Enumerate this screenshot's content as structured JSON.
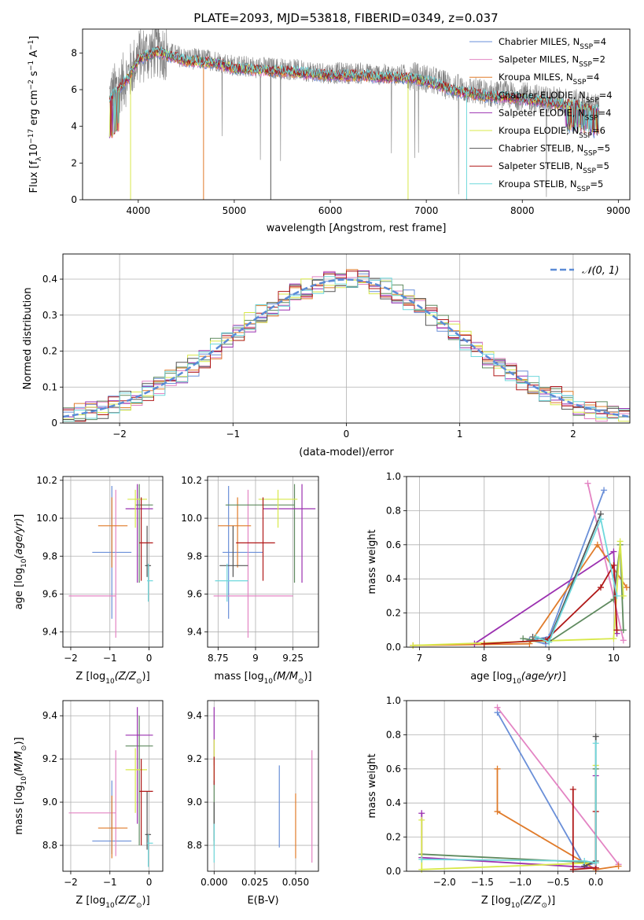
{
  "figure": {
    "title": "PLATE=2093, MJD=53818, FIBERID=0349, z=0.037"
  },
  "series_styles": [
    {
      "name": "Chabrier MILES",
      "nssp": "4",
      "color": "#6a8fd8"
    },
    {
      "name": "Salpeter MILES",
      "nssp": "2",
      "color": "#e384c3"
    },
    {
      "name": "Kroupa MILES",
      "nssp": "4",
      "color": "#e07b2a"
    },
    {
      "name": "Chabrier ELODIE",
      "nssp": "4",
      "color": "#5f8a5f"
    },
    {
      "name": "Salpeter ELODIE",
      "nssp": "4",
      "color": "#9b30b0"
    },
    {
      "name": "Kroupa ELODIE",
      "nssp": "6",
      "color": "#d8e84a"
    },
    {
      "name": "Chabrier STELIB",
      "nssp": "5",
      "color": "#555555"
    },
    {
      "name": "Salpeter STELIB",
      "nssp": "5",
      "color": "#b01818"
    },
    {
      "name": "Kroupa STELIB",
      "nssp": "5",
      "color": "#6fd8dc"
    }
  ],
  "chart_data": [
    {
      "id": "spectrum",
      "type": "line",
      "xlabel": "wavelength [Angstrom, rest frame]",
      "ylabel_main": "Flux [f",
      "ylabel_sub": "λ",
      "ylabel_rest": "10",
      "ylabel_exp1": "−17",
      "ylabel_mid": " erg cm",
      "ylabel_exp2": "−2",
      "ylabel_s": " s",
      "ylabel_exp3": "−1",
      "ylabel_a": " A",
      "ylabel_exp4": "−1",
      "ylabel_end": "]",
      "xlim": [
        3420,
        9120
      ],
      "ylim": [
        0,
        9.3
      ],
      "xticks": [
        4000,
        5000,
        6000,
        7000,
        8000,
        9000
      ],
      "yticks": [
        0,
        2,
        4,
        6,
        8
      ],
      "legend_position": "top-right",
      "legend_nssp_label": "N",
      "legend_nssp_sub": "SSP",
      "data_color": "#808080",
      "envelope": {
        "x": [
          3700,
          3900,
          4000,
          4200,
          4500,
          4800,
          5000,
          5300,
          5600,
          6000,
          6300,
          6600,
          6800,
          7000,
          7300,
          7600,
          7900,
          8200,
          8500,
          8800
        ],
        "y": [
          5.6,
          6.8,
          7.8,
          8.2,
          7.7,
          7.6,
          7.3,
          7.2,
          7.1,
          6.9,
          6.9,
          6.8,
          6.8,
          6.6,
          6.1,
          5.8,
          5.7,
          5.5,
          5.3,
          5.0
        ]
      }
    },
    {
      "id": "residual_hist",
      "type": "bar",
      "xlabel": "(data-model)/error",
      "ylabel": "Normed distribution",
      "xlim": [
        -2.5,
        2.5
      ],
      "ylim": [
        0,
        0.47
      ],
      "xticks": [
        -2,
        -1,
        0,
        1,
        2
      ],
      "yticks": [
        0.0,
        0.1,
        0.2,
        0.3,
        0.4
      ],
      "legend_position": "top-right",
      "gauss_label": "𝒩(0, 1)",
      "gauss_color": "#5b8bd6"
    },
    {
      "id": "z_age",
      "type": "scatter",
      "xlabel": "Z [log",
      "xlabel_sub": "10",
      "xlabel_rest": "(Z/Z",
      "xlabel_sun": "⊙",
      "xlabel_end": ")]",
      "ylabel": "age  [log10(age/yr)]",
      "xlim": [
        -2.2,
        0.35
      ],
      "ylim": [
        9.32,
        10.22
      ],
      "xticks": [
        -2,
        -1,
        0
      ],
      "yticks": [
        9.4,
        9.6,
        9.8,
        10.0,
        10.2
      ],
      "points": [
        {
          "x": -0.95,
          "y": 9.82,
          "xlo": -1.45,
          "xhi": -0.45,
          "ylo": 9.47,
          "yhi": 10.17,
          "s": 0
        },
        {
          "x": -0.85,
          "y": 9.59,
          "xlo": -2.05,
          "xhi": -0.85,
          "ylo": 9.37,
          "yhi": 10.15,
          "s": 1
        },
        {
          "x": -0.95,
          "y": 9.96,
          "xlo": -1.3,
          "xhi": -0.55,
          "ylo": 9.74,
          "yhi": 10.11,
          "s": 2
        },
        {
          "x": -0.25,
          "y": 10.07,
          "xlo": -0.35,
          "xhi": 0.1,
          "ylo": 9.66,
          "yhi": 10.18,
          "s": 3
        },
        {
          "x": -0.3,
          "y": 10.05,
          "xlo": -0.6,
          "xhi": 0.1,
          "ylo": 9.66,
          "yhi": 10.18,
          "s": 4
        },
        {
          "x": -0.35,
          "y": 10.1,
          "xlo": -0.55,
          "xhi": -0.05,
          "ylo": 9.95,
          "yhi": 10.15,
          "s": 5
        },
        {
          "x": -0.05,
          "y": 9.75,
          "xlo": -0.1,
          "xhi": 0.05,
          "ylo": 9.69,
          "yhi": 9.96,
          "s": 6
        },
        {
          "x": -0.2,
          "y": 9.87,
          "xlo": -0.25,
          "xhi": 0.1,
          "ylo": 9.67,
          "yhi": 10.11,
          "s": 7
        },
        {
          "x": -0.02,
          "y": 9.67,
          "xlo": -0.05,
          "xhi": 0.1,
          "ylo": 9.56,
          "yhi": 9.76,
          "s": 8
        }
      ]
    },
    {
      "id": "mass_age",
      "type": "scatter",
      "xlabel": "mass [log",
      "xlabel_sub": "10",
      "xlabel_rest": "(M/M",
      "xlabel_sun": "⊙",
      "xlabel_end": ")]",
      "xlim": [
        8.68,
        9.42
      ],
      "ylim": [
        9.32,
        10.22
      ],
      "xticks": [
        8.75,
        9.0,
        9.25
      ],
      "yticks": [
        9.4,
        9.6,
        9.8,
        10.0,
        10.2
      ],
      "points": [
        {
          "x": 8.82,
          "y": 9.82,
          "xlo": 8.78,
          "xhi": 9.05,
          "ylo": 9.47,
          "yhi": 10.17,
          "s": 0
        },
        {
          "x": 8.95,
          "y": 9.59,
          "xlo": 8.72,
          "xhi": 9.25,
          "ylo": 9.37,
          "yhi": 10.15,
          "s": 1
        },
        {
          "x": 8.88,
          "y": 9.96,
          "xlo": 8.75,
          "xhi": 8.97,
          "ylo": 9.74,
          "yhi": 10.11,
          "s": 2
        },
        {
          "x": 9.26,
          "y": 10.07,
          "xlo": 8.8,
          "xhi": 9.26,
          "ylo": 9.66,
          "yhi": 10.18,
          "s": 3
        },
        {
          "x": 9.31,
          "y": 10.05,
          "xlo": 9.05,
          "xhi": 9.4,
          "ylo": 9.66,
          "yhi": 10.18,
          "s": 4
        },
        {
          "x": 9.15,
          "y": 10.1,
          "xlo": 9.02,
          "xhi": 9.28,
          "ylo": 9.95,
          "yhi": 10.15,
          "s": 5
        },
        {
          "x": 8.85,
          "y": 9.75,
          "xlo": 8.76,
          "xhi": 8.95,
          "ylo": 9.69,
          "yhi": 9.96,
          "s": 6
        },
        {
          "x": 9.05,
          "y": 9.87,
          "xlo": 8.87,
          "xhi": 9.13,
          "ylo": 9.67,
          "yhi": 10.11,
          "s": 7
        },
        {
          "x": 8.81,
          "y": 9.67,
          "xlo": 8.73,
          "xhi": 8.95,
          "ylo": 9.56,
          "yhi": 9.76,
          "s": 8
        }
      ]
    },
    {
      "id": "age_weight",
      "type": "line",
      "xlabel": "age  [log10(age/yr)]",
      "ylabel": "mass weight",
      "xlim": [
        6.8,
        10.25
      ],
      "ylim": [
        0,
        1.0
      ],
      "xticks": [
        7,
        8,
        9,
        10
      ],
      "yticks": [
        0.0,
        0.2,
        0.4,
        0.6,
        0.8,
        1.0
      ],
      "series": [
        {
          "s": 0,
          "x": [
            8.95,
            8.7,
            9.0,
            9.85
          ],
          "y": [
            0.02,
            0.04,
            0.06,
            0.92
          ]
        },
        {
          "s": 1,
          "x": [
            10.15,
            9.6
          ],
          "y": [
            0.04,
            0.96
          ]
        },
        {
          "s": 2,
          "x": [
            6.9,
            8.7,
            9.75,
            10.2
          ],
          "y": [
            0.01,
            0.02,
            0.6,
            0.35
          ]
        },
        {
          "s": 3,
          "x": [
            8.6,
            9.0,
            10.0,
            10.1,
            10.15
          ],
          "y": [
            0.05,
            0.03,
            0.28,
            0.6,
            0.1
          ]
        },
        {
          "s": 4,
          "x": [
            7.85,
            10.0,
            10.05
          ],
          "y": [
            0.02,
            0.56,
            0.08
          ]
        },
        {
          "s": 5,
          "x": [
            6.9,
            10.0,
            10.1,
            10.15
          ],
          "y": [
            0.01,
            0.05,
            0.62,
            0.3
          ]
        },
        {
          "s": 6,
          "x": [
            8.75,
            9.0,
            9.8
          ],
          "y": [
            0.06,
            0.04,
            0.78
          ]
        },
        {
          "s": 7,
          "x": [
            8.0,
            8.95,
            9.8,
            10.0,
            10.05
          ],
          "y": [
            0.02,
            0.04,
            0.35,
            0.48,
            0.1
          ]
        },
        {
          "s": 8,
          "x": [
            8.8,
            9.0,
            9.8,
            10.05
          ],
          "y": [
            0.06,
            0.03,
            0.75,
            0.3
          ]
        }
      ]
    },
    {
      "id": "z_mass",
      "type": "scatter",
      "xlabel": "Z [log",
      "xlabel_sub": "10",
      "xlabel_rest": "(Z/Z",
      "xlabel_sun": "⊙",
      "xlabel_end": ")]",
      "ylabel": "mass [log10(M/M⊙)]",
      "xlim": [
        -2.2,
        0.35
      ],
      "ylim": [
        8.68,
        9.47
      ],
      "xticks": [
        -2,
        -1,
        0
      ],
      "yticks": [
        8.8,
        9.0,
        9.2,
        9.4
      ],
      "points": [
        {
          "x": -0.95,
          "y": 8.82,
          "xlo": -1.45,
          "xhi": -0.45,
          "ylo": 8.76,
          "yhi": 9.1,
          "s": 0
        },
        {
          "x": -0.85,
          "y": 8.95,
          "xlo": -2.05,
          "xhi": -0.85,
          "ylo": 8.75,
          "yhi": 9.24,
          "s": 1
        },
        {
          "x": -0.95,
          "y": 8.88,
          "xlo": -1.3,
          "xhi": -0.55,
          "ylo": 8.74,
          "yhi": 9.03,
          "s": 2
        },
        {
          "x": -0.25,
          "y": 9.26,
          "xlo": -0.6,
          "xhi": 0.1,
          "ylo": 8.8,
          "yhi": 9.4,
          "s": 3
        },
        {
          "x": -0.3,
          "y": 9.31,
          "xlo": -0.6,
          "xhi": 0.1,
          "ylo": 8.9,
          "yhi": 9.44,
          "s": 4
        },
        {
          "x": -0.35,
          "y": 9.15,
          "xlo": -0.6,
          "xhi": -0.05,
          "ylo": 8.95,
          "yhi": 9.25,
          "s": 5
        },
        {
          "x": -0.05,
          "y": 8.85,
          "xlo": -0.1,
          "xhi": 0.05,
          "ylo": 8.78,
          "yhi": 9.05,
          "s": 6
        },
        {
          "x": -0.2,
          "y": 9.05,
          "xlo": -0.25,
          "xhi": 0.1,
          "ylo": 8.8,
          "yhi": 9.2,
          "s": 7
        },
        {
          "x": -0.02,
          "y": 8.81,
          "xlo": -0.05,
          "xhi": 0.1,
          "ylo": 8.7,
          "yhi": 8.85,
          "s": 8
        }
      ]
    },
    {
      "id": "ebv_mass",
      "type": "scatter",
      "xlabel": "E(B-V)",
      "xlim": [
        -0.004,
        0.064
      ],
      "ylim": [
        8.68,
        9.47
      ],
      "xticks": [
        0.0,
        0.025,
        0.05
      ],
      "xticklabels": [
        "0.000",
        "0.025",
        "0.050"
      ],
      "yticks": [
        8.8,
        9.0,
        9.2,
        9.4
      ],
      "points": [
        {
          "x": 0.04,
          "y": 8.97,
          "ylo": 8.79,
          "yhi": 9.17,
          "s": 0
        },
        {
          "x": 0.06,
          "y": 8.98,
          "ylo": 8.72,
          "yhi": 9.24,
          "s": 1
        },
        {
          "x": 0.05,
          "y": 8.89,
          "ylo": 8.74,
          "yhi": 9.04,
          "s": 2
        },
        {
          "x": 0.0,
          "y": 8.95,
          "ylo": 8.8,
          "yhi": 9.1,
          "s": 3
        },
        {
          "x": 0.0,
          "y": 9.3,
          "ylo": 9.17,
          "yhi": 9.44,
          "s": 4
        },
        {
          "x": 0.0,
          "y": 9.2,
          "ylo": 9.1,
          "yhi": 9.29,
          "s": 5
        },
        {
          "x": 0.0,
          "y": 8.9,
          "ylo": 8.82,
          "yhi": 9.0,
          "s": 6
        },
        {
          "x": 0.0,
          "y": 9.13,
          "ylo": 9.08,
          "yhi": 9.21,
          "s": 7
        },
        {
          "x": 0.0,
          "y": 8.81,
          "ylo": 8.72,
          "yhi": 8.9,
          "s": 8
        }
      ]
    },
    {
      "id": "z_weight",
      "type": "line",
      "xlabel": "Z [log",
      "xlabel_sub": "10",
      "xlabel_rest": "(Z/Z",
      "xlabel_sun": "⊙",
      "xlabel_end": ")]",
      "ylabel": "mass weight",
      "xlim": [
        -2.5,
        0.45
      ],
      "ylim": [
        0,
        1.0
      ],
      "xticks": [
        -2.0,
        -1.5,
        -1.0,
        -0.5,
        0.0
      ],
      "xticklabels": [
        "−2.0",
        "−1.5",
        "−1.0",
        "−0.5",
        "0.0"
      ],
      "yticks": [
        0.0,
        0.2,
        0.4,
        0.6,
        0.8,
        1.0
      ],
      "series": [
        {
          "s": 0,
          "x": [
            -1.3,
            -0.15,
            0.0
          ],
          "y": [
            0.93,
            0.03,
            0.05
          ]
        },
        {
          "s": 1,
          "x": [
            -1.3,
            0.3
          ],
          "y": [
            0.96,
            0.04
          ]
        },
        {
          "s": 2,
          "x": [
            -1.3,
            -1.3,
            0.0,
            0.3
          ],
          "y": [
            0.6,
            0.35,
            0.01,
            0.03
          ]
        },
        {
          "s": 3,
          "x": [
            -2.3,
            0.0,
            0.0
          ],
          "y": [
            0.1,
            0.05,
            0.6
          ]
        },
        {
          "s": 4,
          "x": [
            -2.3,
            -2.3,
            0.0,
            0.0
          ],
          "y": [
            0.34,
            0.08,
            0.02,
            0.56
          ]
        },
        {
          "s": 5,
          "x": [
            -2.3,
            -2.3,
            0.0,
            0.0
          ],
          "y": [
            0.3,
            0.01,
            0.05,
            0.62
          ]
        },
        {
          "s": 6,
          "x": [
            -0.15,
            0.0,
            0.0
          ],
          "y": [
            0.03,
            0.06,
            0.79
          ]
        },
        {
          "s": 7,
          "x": [
            -0.3,
            -0.3,
            0.0,
            0.0
          ],
          "y": [
            0.48,
            0.01,
            0.02,
            0.35
          ]
        },
        {
          "s": 8,
          "x": [
            -2.3,
            -0.15,
            0.0,
            0.0
          ],
          "y": [
            0.07,
            0.06,
            0.05,
            0.75
          ]
        }
      ]
    }
  ]
}
